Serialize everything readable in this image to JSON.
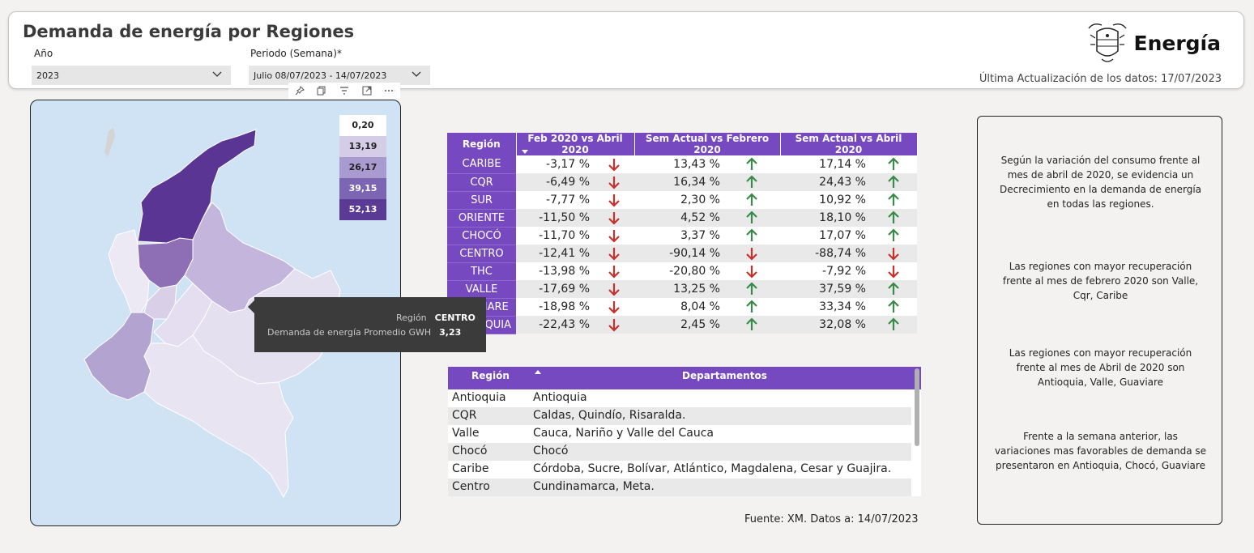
{
  "header": {
    "title": "Demanda de energía por Regiones",
    "year_label": "Año",
    "year_value": "2023",
    "period_label": "Periodo (Semana)*",
    "period_value": "Julio 08/07/2023 - 14/07/2023",
    "logo_text": "Energía",
    "last_update": "Última Actualización de los datos: 17/07/2023"
  },
  "map": {
    "legend": [
      {
        "value": "0,20",
        "color": "#f2f0f7"
      },
      {
        "value": "13,19",
        "color": "#d5cde7"
      },
      {
        "value": "26,17",
        "color": "#a99ad0"
      },
      {
        "value": "39,15",
        "color": "#7c66b3"
      },
      {
        "value": "52,13",
        "color": "#5b3a96"
      }
    ],
    "region_colors": {
      "caribe": "#5a3594",
      "antioquia": "#8e6fb6",
      "oriente": "#c3b5dc",
      "choco": "#ece8f4",
      "valle": "#b3a3d1",
      "cqr": "#d9d0e8",
      "centro": "#e5e0f0",
      "sur": "#e9e4f2",
      "thc": "#e4def0"
    }
  },
  "tooltip": {
    "region_label": "Región",
    "region_value": "CENTRO",
    "demand_label": "Demanda de energía Promedio GWH",
    "demand_value": "3,23"
  },
  "variation_table": {
    "headers": [
      "Región",
      "Feb 2020 vs Abril 2020",
      "Sem Actual vs Febrero 2020",
      "Sem Actual vs Abril 2020"
    ],
    "rows": [
      {
        "region": "CARIBE",
        "c1": "-3,17 %",
        "a1": "down",
        "c2": "13,43 %",
        "a2": "up",
        "c3": "17,14 %",
        "a3": "up"
      },
      {
        "region": "CQR",
        "c1": "-6,49 %",
        "a1": "down",
        "c2": "16,34 %",
        "a2": "up",
        "c3": "24,43 %",
        "a3": "up"
      },
      {
        "region": "SUR",
        "c1": "-7,77 %",
        "a1": "down",
        "c2": "2,30 %",
        "a2": "up",
        "c3": "10,92 %",
        "a3": "up"
      },
      {
        "region": "ORIENTE",
        "c1": "-11,50 %",
        "a1": "down",
        "c2": "4,52 %",
        "a2": "up",
        "c3": "18,10 %",
        "a3": "up"
      },
      {
        "region": "CHOCÓ",
        "c1": "-11,70 %",
        "a1": "down",
        "c2": "3,37 %",
        "a2": "up",
        "c3": "17,07 %",
        "a3": "up"
      },
      {
        "region": "CENTRO",
        "c1": "-12,41 %",
        "a1": "down",
        "c2": "-90,14 %",
        "a2": "down",
        "c3": "-88,74 %",
        "a3": "down"
      },
      {
        "region": "THC",
        "c1": "-13,98 %",
        "a1": "down",
        "c2": "-20,80 %",
        "a2": "down",
        "c3": "-7,92 %",
        "a3": "down"
      },
      {
        "region": "VALLE",
        "c1": "-17,69 %",
        "a1": "down",
        "c2": "13,25 %",
        "a2": "up",
        "c3": "37,59 %",
        "a3": "up"
      },
      {
        "region": "GUAVIARE",
        "c1": "-18,98 %",
        "a1": "down",
        "c2": "8,04 %",
        "a2": "up",
        "c3": "33,34 %",
        "a3": "up"
      },
      {
        "region": "ANTIOQUIA",
        "c1": "-22,43 %",
        "a1": "down",
        "c2": "2,45 %",
        "a2": "up",
        "c3": "32,08 %",
        "a3": "up"
      }
    ],
    "up_color": "#3a8a4a",
    "down_color": "#c9302c"
  },
  "departments_table": {
    "headers": [
      "Región",
      "Departamentos"
    ],
    "rows": [
      {
        "region": "Antioquia",
        "departments": "Antioquia"
      },
      {
        "region": "CQR",
        "departments": "Caldas, Quindío, Risaralda."
      },
      {
        "region": "Valle",
        "departments": "Cauca, Nariño y Valle del Cauca"
      },
      {
        "region": "Chocó",
        "departments": "Chocó"
      },
      {
        "region": "Caribe",
        "departments": "Córdoba, Sucre, Bolívar, Atlántico, Magdalena, Cesar y Guajira."
      },
      {
        "region": "Centro",
        "departments": "Cundinamarca, Meta."
      }
    ]
  },
  "source": "Fuente: XM. Datos a: 14/07/2023",
  "notes": [
    "Según la variación del consumo frente al mes de abril de 2020,  se evidencia un Decrecimiento en la demanda de energía en todas las regiones.",
    "Las regiones con mayor recuperación frente al mes de febrero 2020 son Valle, Cqr, Caribe",
    "Las regiones con mayor recuperación frente al mes de Abril de 2020 son Antioquia, Valle, Guaviare",
    "Frente a la semana anterior, las variaciones mas favorables de demanda se presentaron en Antioquia, Chocó, Guaviare"
  ]
}
